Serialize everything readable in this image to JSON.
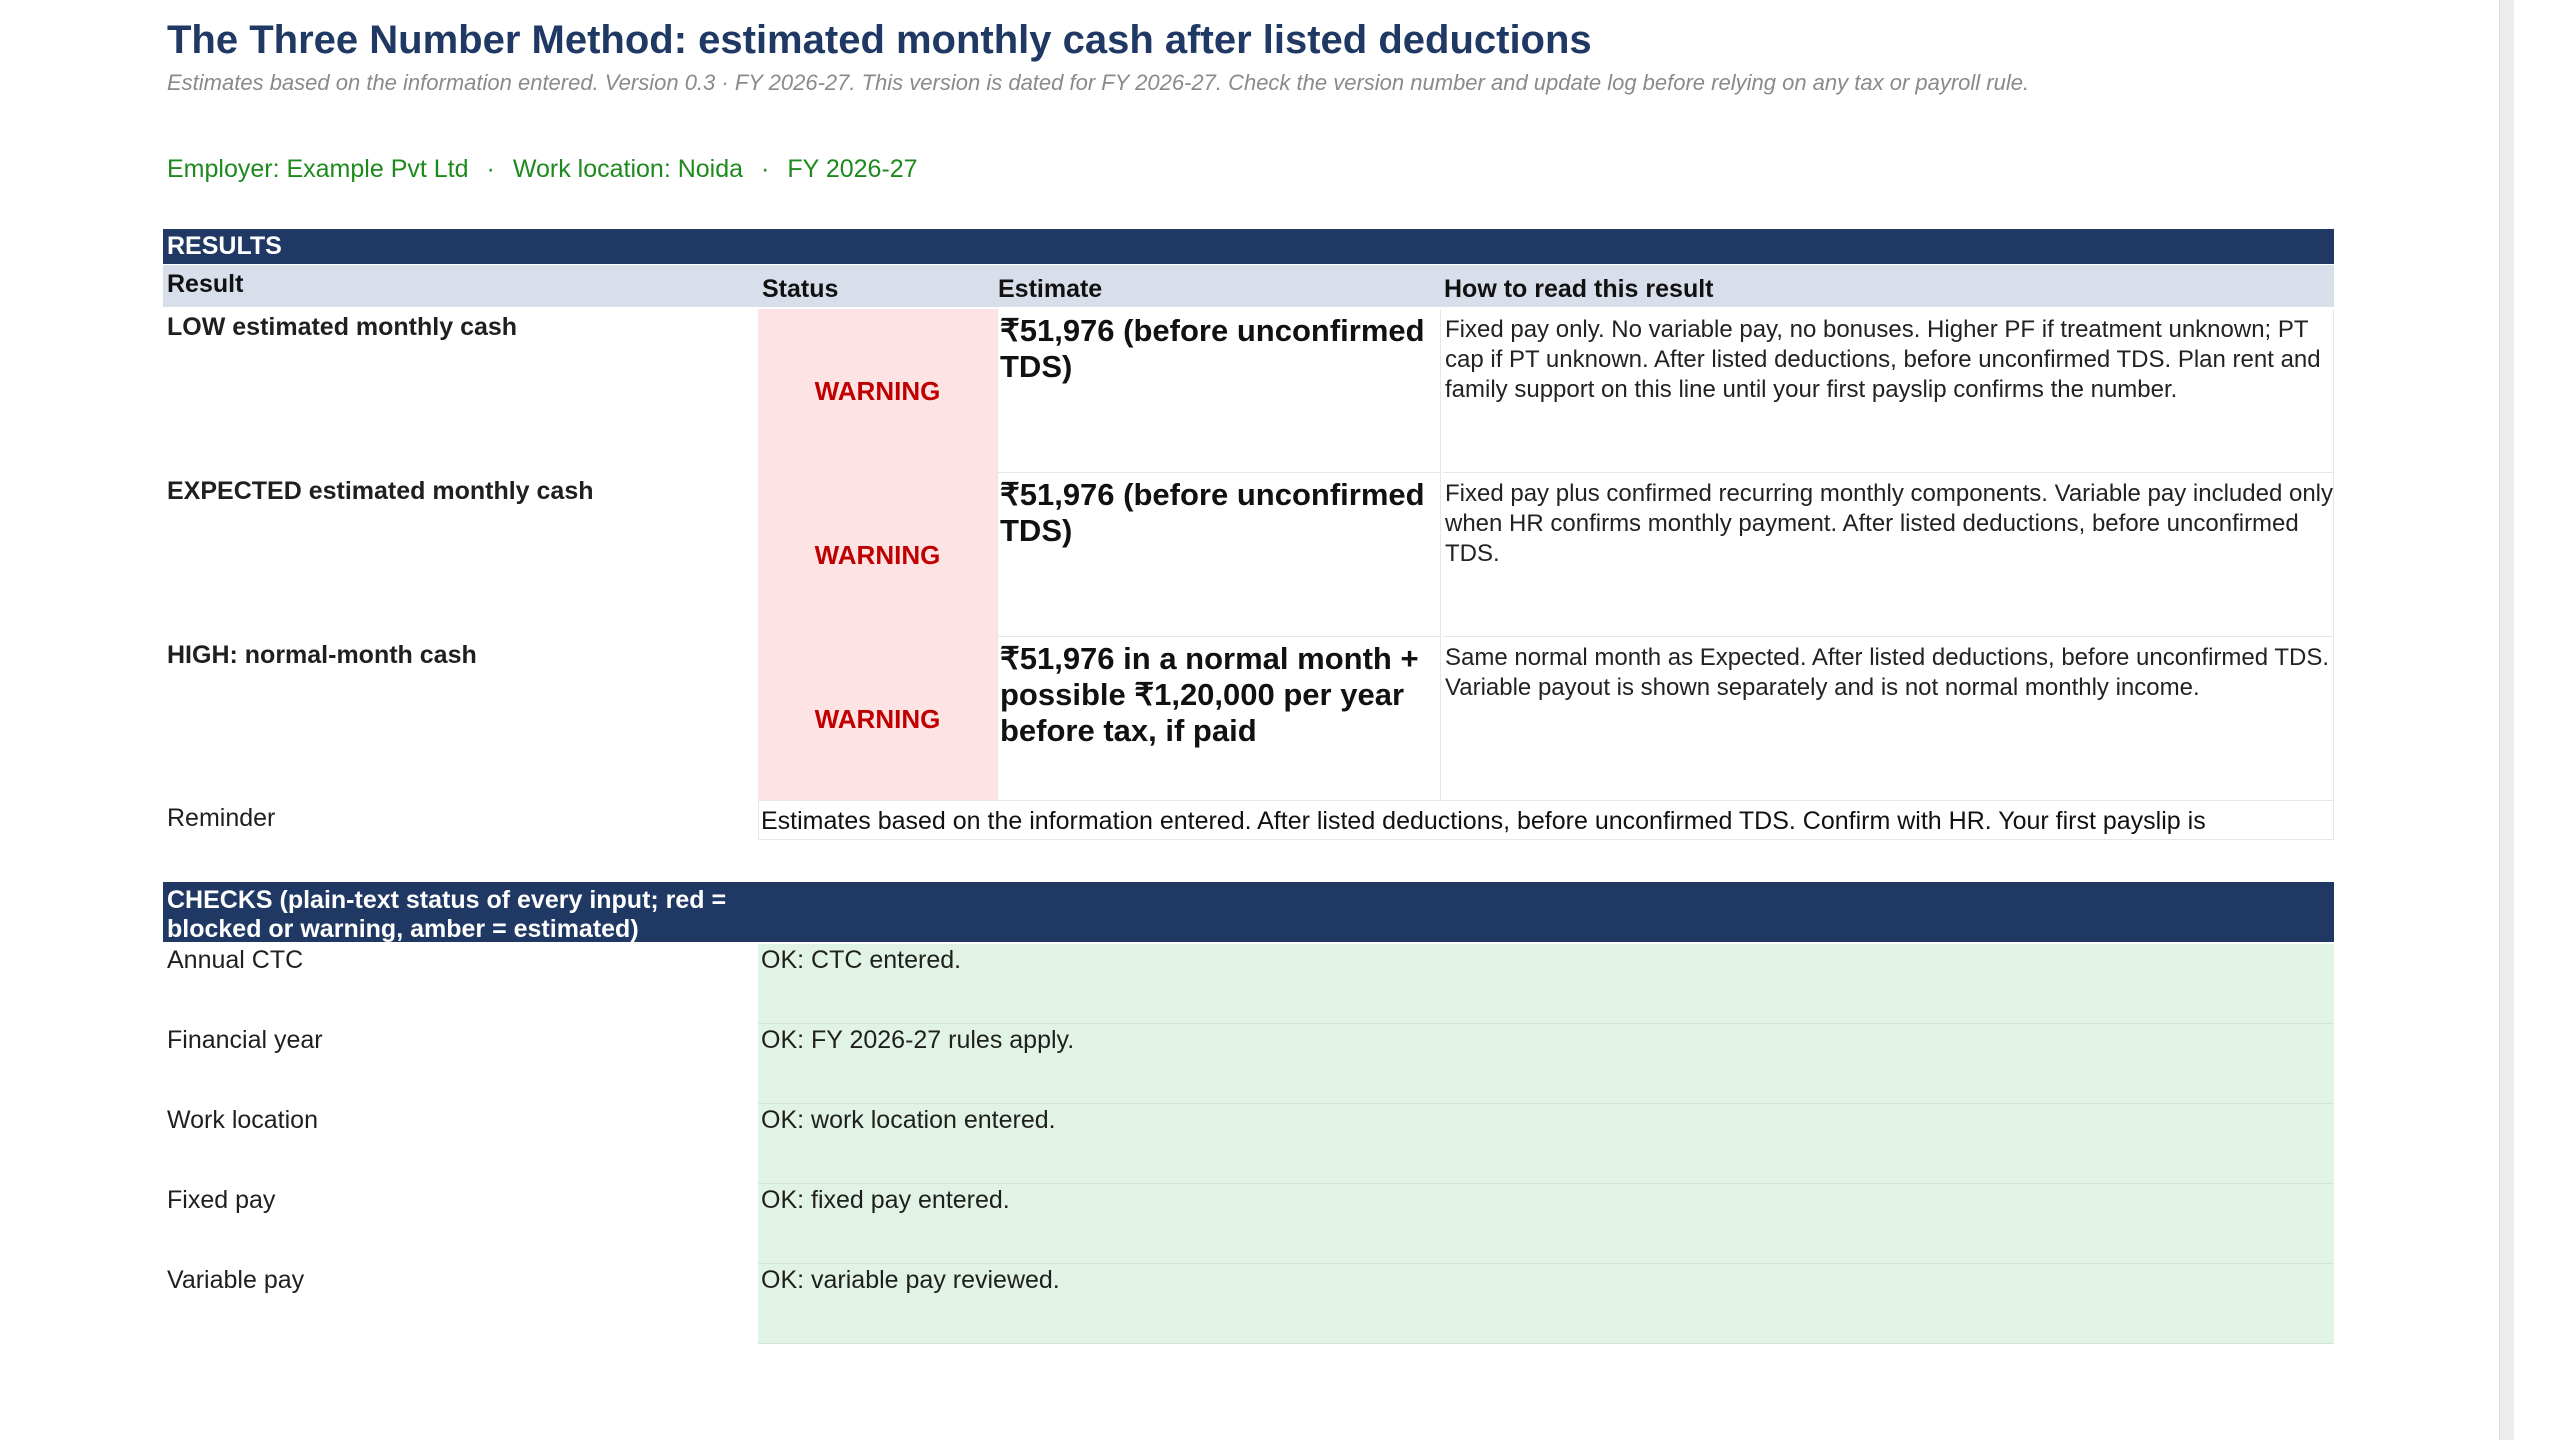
{
  "title": "The Three Number Method: estimated monthly cash after listed deductions",
  "subtitle": "Estimates based on the information entered. Version 0.3 · FY 2026-27. This version is dated for FY 2026-27. Check the version number and update log before relying on any tax or payroll rule.",
  "meta": {
    "employer": "Employer: Example Pvt Ltd",
    "location": "Work location: Noida",
    "fy": "FY 2026-27",
    "separator": "·"
  },
  "results": {
    "section_label": "RESULTS",
    "headers": {
      "result": "Result",
      "status": "Status",
      "estimate": "Estimate",
      "howto": "How to read this result"
    },
    "rows": [
      {
        "label": "LOW estimated monthly cash",
        "status": "WARNING",
        "estimate": "₹51,976  (before unconfirmed TDS)",
        "howto": "Fixed pay only. No variable pay, no bonuses. Higher PF if treatment unknown; PT cap if PT unknown. After listed deductions, before unconfirmed TDS. Plan rent and family support on this line until your first payslip confirms the number."
      },
      {
        "label": "EXPECTED estimated monthly cash",
        "status": "WARNING",
        "estimate": "₹51,976  (before unconfirmed TDS)",
        "howto": "Fixed pay plus confirmed recurring monthly components. Variable pay included only when HR confirms monthly payment. After listed deductions, before unconfirmed TDS."
      },
      {
        "label": "HIGH: normal-month cash",
        "status": "WARNING",
        "estimate": "₹51,976 in a normal month +  possible ₹1,20,000 per year before tax, if paid",
        "howto": "Same normal month as Expected. After listed deductions, before unconfirmed TDS. Variable payout is shown separately and is not normal monthly income."
      }
    ],
    "reminder_label": "Reminder",
    "reminder_text": "Estimates based on the information entered. After listed deductions, before unconfirmed TDS. Confirm with HR. Your first payslip is"
  },
  "checks": {
    "section_label": "CHECKS (plain-text status of every input; red = blocked or warning, amber = estimated)",
    "rows": [
      {
        "label": "Annual CTC",
        "value": "OK: CTC entered."
      },
      {
        "label": "Financial year",
        "value": "OK: FY 2026-27 rules apply."
      },
      {
        "label": "Work location",
        "value": "OK: work location entered."
      },
      {
        "label": "Fixed pay",
        "value": "OK: fixed pay entered."
      },
      {
        "label": "Variable pay",
        "value": "OK: variable pay reviewed."
      }
    ]
  },
  "colors": {
    "header_navy": "#1f3864",
    "warning_red": "#c00000",
    "warning_bg": "#fde3e3",
    "ok_green_bg": "#e0f3e5",
    "meta_green": "#1e8a1e"
  }
}
